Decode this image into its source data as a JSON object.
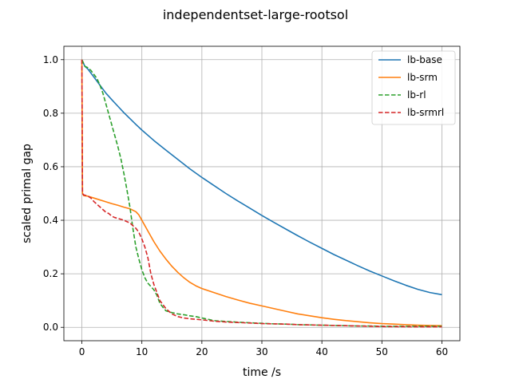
{
  "chart_data": {
    "type": "line",
    "title": "independentset-large-rootsol",
    "xlabel": "time /s",
    "ylabel": "scaled primal gap",
    "xlim": [
      -3,
      63
    ],
    "ylim": [
      -0.05,
      1.05
    ],
    "xticks": [
      0,
      10,
      20,
      30,
      40,
      50,
      60
    ],
    "yticks": [
      0.0,
      0.2,
      0.4,
      0.6,
      0.8,
      1.0
    ],
    "xtick_labels": [
      "0",
      "10",
      "20",
      "30",
      "40",
      "50",
      "60"
    ],
    "ytick_labels": [
      "0.0",
      "0.2",
      "0.4",
      "0.6",
      "0.8",
      "1.0"
    ],
    "grid": true,
    "legend_position": "upper right",
    "series": [
      {
        "name": "lb-base",
        "color": "#1f77b4",
        "style": "solid",
        "points": [
          [
            0,
            1.0
          ],
          [
            0.5,
            0.975
          ],
          [
            1,
            0.965
          ],
          [
            2,
            0.935
          ],
          [
            3,
            0.905
          ],
          [
            4,
            0.875
          ],
          [
            5,
            0.85
          ],
          [
            6,
            0.826
          ],
          [
            7,
            0.802
          ],
          [
            8,
            0.78
          ],
          [
            9,
            0.758
          ],
          [
            10,
            0.737
          ],
          [
            12,
            0.698
          ],
          [
            14,
            0.662
          ],
          [
            16,
            0.627
          ],
          [
            18,
            0.592
          ],
          [
            20,
            0.56
          ],
          [
            22,
            0.53
          ],
          [
            24,
            0.5
          ],
          [
            26,
            0.472
          ],
          [
            28,
            0.445
          ],
          [
            30,
            0.418
          ],
          [
            32,
            0.392
          ],
          [
            34,
            0.367
          ],
          [
            36,
            0.342
          ],
          [
            38,
            0.318
          ],
          [
            40,
            0.295
          ],
          [
            42,
            0.272
          ],
          [
            44,
            0.251
          ],
          [
            46,
            0.23
          ],
          [
            48,
            0.21
          ],
          [
            50,
            0.192
          ],
          [
            52,
            0.174
          ],
          [
            54,
            0.157
          ],
          [
            56,
            0.142
          ],
          [
            58,
            0.13
          ],
          [
            60,
            0.122
          ]
        ]
      },
      {
        "name": "lb-srm",
        "color": "#ff7f0e",
        "style": "solid",
        "points": [
          [
            0,
            1.0
          ],
          [
            0.1,
            0.5
          ],
          [
            0.3,
            0.492
          ],
          [
            1,
            0.49
          ],
          [
            2,
            0.483
          ],
          [
            3,
            0.476
          ],
          [
            4,
            0.469
          ],
          [
            5,
            0.462
          ],
          [
            6,
            0.456
          ],
          [
            7,
            0.449
          ],
          [
            8,
            0.443
          ],
          [
            9,
            0.432
          ],
          [
            9.5,
            0.42
          ],
          [
            10,
            0.4
          ],
          [
            11,
            0.36
          ],
          [
            12,
            0.32
          ],
          [
            13,
            0.285
          ],
          [
            14,
            0.255
          ],
          [
            15,
            0.228
          ],
          [
            16,
            0.205
          ],
          [
            17,
            0.185
          ],
          [
            18,
            0.168
          ],
          [
            19,
            0.155
          ],
          [
            20,
            0.145
          ],
          [
            22,
            0.13
          ],
          [
            24,
            0.115
          ],
          [
            26,
            0.102
          ],
          [
            28,
            0.09
          ],
          [
            30,
            0.08
          ],
          [
            32,
            0.07
          ],
          [
            34,
            0.06
          ],
          [
            36,
            0.05
          ],
          [
            38,
            0.043
          ],
          [
            40,
            0.036
          ],
          [
            42,
            0.03
          ],
          [
            44,
            0.025
          ],
          [
            46,
            0.021
          ],
          [
            48,
            0.017
          ],
          [
            50,
            0.014
          ],
          [
            52,
            0.012
          ],
          [
            54,
            0.01
          ],
          [
            56,
            0.008
          ],
          [
            58,
            0.007
          ],
          [
            60,
            0.006
          ]
        ]
      },
      {
        "name": "lb-rl",
        "color": "#2ca02c",
        "style": "dashed",
        "points": [
          [
            0,
            1.0
          ],
          [
            0.5,
            0.975
          ],
          [
            1,
            0.97
          ],
          [
            1.5,
            0.96
          ],
          [
            2,
            0.945
          ],
          [
            2.5,
            0.93
          ],
          [
            3,
            0.905
          ],
          [
            3.5,
            0.875
          ],
          [
            4,
            0.835
          ],
          [
            4.5,
            0.795
          ],
          [
            5,
            0.755
          ],
          [
            5.5,
            0.715
          ],
          [
            6,
            0.675
          ],
          [
            6.5,
            0.63
          ],
          [
            7,
            0.575
          ],
          [
            7.5,
            0.515
          ],
          [
            8,
            0.45
          ],
          [
            8.5,
            0.37
          ],
          [
            9,
            0.3
          ],
          [
            9.5,
            0.255
          ],
          [
            10,
            0.215
          ],
          [
            10.5,
            0.185
          ],
          [
            11,
            0.165
          ],
          [
            12,
            0.14
          ],
          [
            12.5,
            0.12
          ],
          [
            13,
            0.09
          ],
          [
            13.5,
            0.075
          ],
          [
            14,
            0.062
          ],
          [
            15,
            0.055
          ],
          [
            16,
            0.05
          ],
          [
            17,
            0.047
          ],
          [
            18,
            0.043
          ],
          [
            19,
            0.04
          ],
          [
            20,
            0.035
          ],
          [
            21,
            0.03
          ],
          [
            22,
            0.025
          ],
          [
            24,
            0.022
          ],
          [
            26,
            0.019
          ],
          [
            28,
            0.017
          ],
          [
            30,
            0.015
          ],
          [
            32,
            0.013
          ],
          [
            34,
            0.012
          ],
          [
            36,
            0.01
          ],
          [
            38,
            0.009
          ],
          [
            40,
            0.008
          ],
          [
            42,
            0.007
          ],
          [
            44,
            0.006
          ],
          [
            46,
            0.005
          ],
          [
            48,
            0.005
          ],
          [
            50,
            0.004
          ],
          [
            55,
            0.004
          ],
          [
            60,
            0.004
          ]
        ]
      },
      {
        "name": "lb-srmrl",
        "color": "#d62728",
        "style": "dashed",
        "points": [
          [
            0,
            1.0
          ],
          [
            0.1,
            0.5
          ],
          [
            0.3,
            0.495
          ],
          [
            1,
            0.49
          ],
          [
            1.5,
            0.483
          ],
          [
            2,
            0.47
          ],
          [
            2.5,
            0.46
          ],
          [
            3,
            0.45
          ],
          [
            3.5,
            0.44
          ],
          [
            4,
            0.43
          ],
          [
            4.5,
            0.425
          ],
          [
            5,
            0.415
          ],
          [
            5.5,
            0.41
          ],
          [
            6,
            0.407
          ],
          [
            7,
            0.4
          ],
          [
            8,
            0.39
          ],
          [
            9,
            0.37
          ],
          [
            9.5,
            0.355
          ],
          [
            10,
            0.33
          ],
          [
            10.5,
            0.3
          ],
          [
            11,
            0.26
          ],
          [
            11.5,
            0.2
          ],
          [
            12,
            0.16
          ],
          [
            12.5,
            0.13
          ],
          [
            13,
            0.1
          ],
          [
            14,
            0.07
          ],
          [
            15,
            0.05
          ],
          [
            16,
            0.04
          ],
          [
            17,
            0.035
          ],
          [
            18,
            0.032
          ],
          [
            19,
            0.03
          ],
          [
            20,
            0.028
          ],
          [
            22,
            0.023
          ],
          [
            24,
            0.02
          ],
          [
            26,
            0.018
          ],
          [
            28,
            0.016
          ],
          [
            30,
            0.014
          ],
          [
            32,
            0.013
          ],
          [
            34,
            0.012
          ],
          [
            36,
            0.01
          ],
          [
            38,
            0.009
          ],
          [
            40,
            0.008
          ],
          [
            42,
            0.007
          ],
          [
            44,
            0.006
          ],
          [
            46,
            0.005
          ],
          [
            48,
            0.004
          ],
          [
            50,
            0.003
          ],
          [
            55,
            0.002
          ],
          [
            60,
            0.002
          ]
        ]
      }
    ]
  }
}
